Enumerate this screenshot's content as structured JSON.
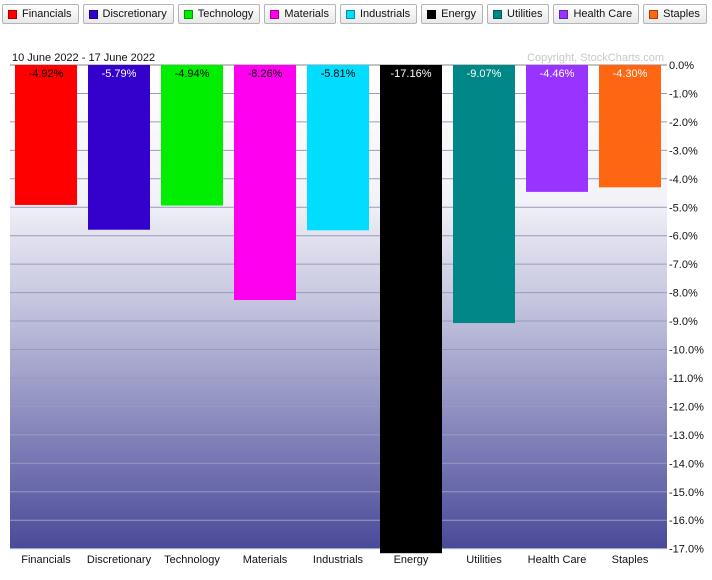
{
  "chart_data": {
    "type": "bar",
    "date_range": "10 June 2022 - 17 June 2022",
    "copyright": "Copyright, StockCharts.com",
    "categories": [
      "Financials",
      "Discretionary",
      "Technology",
      "Materials",
      "Industrials",
      "Energy",
      "Utilities",
      "Health Care",
      "Staples"
    ],
    "values": [
      -4.92,
      -5.79,
      -4.94,
      -8.26,
      -5.81,
      -17.16,
      -9.07,
      -4.46,
      -4.3
    ],
    "value_labels": [
      "-4.92%",
      "-5.79%",
      "-4.94%",
      "-8.26%",
      "-5.81%",
      "-17.16%",
      "-9.07%",
      "-4.46%",
      "-4.30%"
    ],
    "colors": [
      "#ff0000",
      "#3300cc",
      "#00ee00",
      "#ff00ee",
      "#00ddff",
      "#000000",
      "#008888",
      "#9933ff",
      "#ff6611"
    ],
    "label_colors": [
      "#000000",
      "#ffffff",
      "#000000",
      "#000000",
      "#000000",
      "#ffffff",
      "#ffffff",
      "#ffffff",
      "#ffffff"
    ],
    "ylim": [
      -17.2,
      0
    ],
    "yticks": [
      0,
      -1,
      -2,
      -3,
      -4,
      -5,
      -6,
      -7,
      -8,
      -9,
      -10,
      -11,
      -12,
      -13,
      -14,
      -15,
      -16,
      -17
    ],
    "ytick_labels": [
      "0.0%",
      "-1.0%",
      "-2.0%",
      "-3.0%",
      "-4.0%",
      "-5.0%",
      "-6.0%",
      "-7.0%",
      "-8.0%",
      "-9.0%",
      "-10.0%",
      "-11.0%",
      "-12.0%",
      "-13.0%",
      "-14.0%",
      "-15.0%",
      "-16.0%",
      "-17.0%"
    ],
    "legend": [
      "Financials",
      "Discretionary",
      "Technology",
      "Materials",
      "Industrials",
      "Energy",
      "Utilities",
      "Health Care",
      "Staples"
    ],
    "legend_position": "top",
    "grid": true,
    "background_gradient": [
      "#ffffff",
      "#4a4a9a"
    ]
  }
}
